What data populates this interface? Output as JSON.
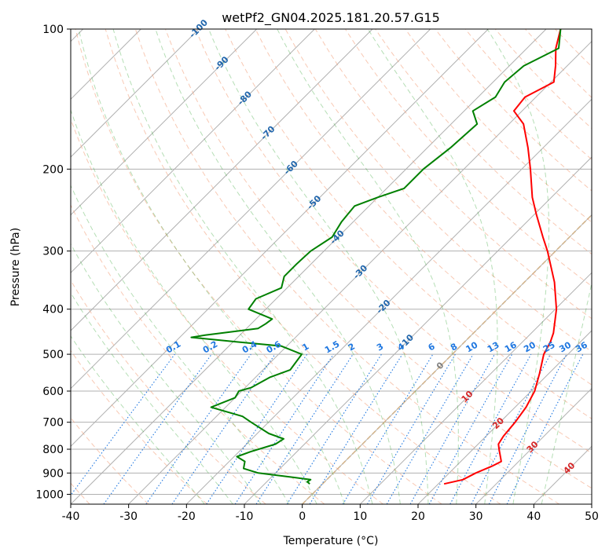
{
  "chart_data": {
    "type": "line",
    "title": "wetPf2_GN04.2025.181.20.57.G15",
    "xlabel": "Temperature (°C)",
    "ylabel": "Pressure (hPa)",
    "xlim": [
      -40,
      50
    ],
    "ylim": [
      1050,
      100
    ],
    "y_scale": "log",
    "skew": "skew-T log-P diagram",
    "x_ticks": [
      "-40",
      "-30",
      "-20",
      "-10",
      "0",
      "10",
      "20",
      "30",
      "40",
      "50"
    ],
    "y_ticks": [
      "1000",
      "900",
      "800",
      "700",
      "600",
      "500",
      "400",
      "300",
      "200",
      "100"
    ],
    "grid": true,
    "series": [
      {
        "color": "#ff0000",
        "points": [
          [
            950,
            21.0
          ],
          [
            930,
            23.5
          ],
          [
            900,
            24.6
          ],
          [
            870,
            26.2
          ],
          [
            850,
            27.0
          ],
          [
            800,
            24.5
          ],
          [
            780,
            23.5
          ],
          [
            750,
            23.0
          ],
          [
            700,
            22.6
          ],
          [
            650,
            21.9
          ],
          [
            600,
            20.6
          ],
          [
            550,
            18.4
          ],
          [
            500,
            15.8
          ],
          [
            470,
            14.8
          ],
          [
            450,
            13.8
          ],
          [
            400,
            10.2
          ],
          [
            350,
            5.2
          ],
          [
            300,
            -1.4
          ],
          [
            280,
            -4.6
          ],
          [
            250,
            -9.7
          ],
          [
            230,
            -13.3
          ],
          [
            200,
            -18.5
          ],
          [
            180,
            -22.6
          ],
          [
            160,
            -27.5
          ],
          [
            150,
            -31.4
          ],
          [
            140,
            -31.9
          ],
          [
            130,
            -29.5
          ],
          [
            120,
            -32.0
          ],
          [
            110,
            -35.0
          ],
          [
            100,
            -37.5
          ]
        ]
      },
      {
        "color": "#008000",
        "points": [
          [
            950,
            -2.2
          ],
          [
            940,
            -3.0
          ],
          [
            930,
            -2.8
          ],
          [
            920,
            -6.0
          ],
          [
            900,
            -13.0
          ],
          [
            880,
            -16.3
          ],
          [
            850,
            -17.3
          ],
          [
            830,
            -19.5
          ],
          [
            810,
            -18.0
          ],
          [
            780,
            -15.0
          ],
          [
            760,
            -14.5
          ],
          [
            740,
            -18.0
          ],
          [
            700,
            -23.0
          ],
          [
            680,
            -25.5
          ],
          [
            650,
            -32.5
          ],
          [
            620,
            -30.0
          ],
          [
            600,
            -30.5
          ],
          [
            590,
            -29.0
          ],
          [
            560,
            -27.5
          ],
          [
            540,
            -25.3
          ],
          [
            500,
            -26.0
          ],
          [
            480,
            -31.0
          ],
          [
            470,
            -39.5
          ],
          [
            460,
            -48.0
          ],
          [
            455,
            -46.0
          ],
          [
            440,
            -38.0
          ],
          [
            430,
            -37.5
          ],
          [
            420,
            -37.2
          ],
          [
            400,
            -43.0
          ],
          [
            380,
            -43.5
          ],
          [
            360,
            -41.0
          ],
          [
            340,
            -42.5
          ],
          [
            320,
            -42.5
          ],
          [
            300,
            -42.3
          ],
          [
            280,
            -41.0
          ],
          [
            260,
            -42.0
          ],
          [
            240,
            -42.5
          ],
          [
            230,
            -40.0
          ],
          [
            220,
            -37.0
          ],
          [
            200,
            -37.0
          ],
          [
            180,
            -36.0
          ],
          [
            160,
            -35.5
          ],
          [
            150,
            -38.5
          ],
          [
            140,
            -37.0
          ],
          [
            130,
            -38.0
          ],
          [
            120,
            -37.5
          ],
          [
            110,
            -34.5
          ],
          [
            100,
            -37.5
          ]
        ]
      }
    ],
    "dry_adiabat_labels": [
      "-100",
      "-90",
      "-80",
      "-70",
      "-60",
      "-50",
      "-40",
      "-30",
      "-20",
      "-10",
      "0",
      "10",
      "20",
      "30",
      "40"
    ],
    "mixing_ratio_labels": [
      "0.1",
      "0.2",
      "0.4",
      "0.6",
      "1",
      "1.5",
      "2",
      "3",
      "4",
      "6",
      "8",
      "10",
      "13",
      "16",
      "20",
      "25",
      "30",
      "36"
    ],
    "colors": {
      "temperature": "#ff0000",
      "dewpoint": "#008000",
      "mixing_ratio": "#1f77e0",
      "dry_adiabat": "#f4a582",
      "moist_adiabat": "#2ca02c",
      "dry_label_cold": "#2166ac",
      "dry_label_warm": "#d62728",
      "isotherm": "#808080",
      "grid": "#b0b0b0"
    }
  }
}
